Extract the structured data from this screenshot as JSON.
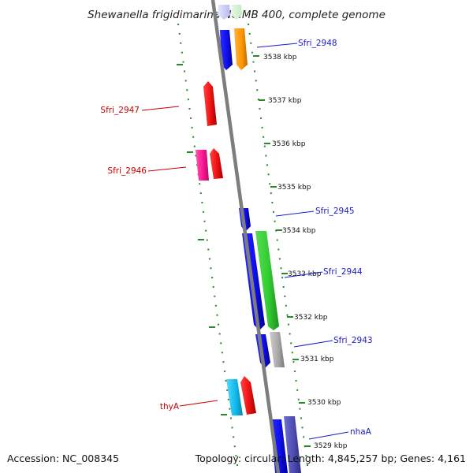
{
  "title": "Shewanella frigidimarina NCIMB 400, complete genome",
  "accession_text": "Accession: NC_008345",
  "topology_text": "Topology: circular; Length: 4,845,257 bp; Genes: 4,161",
  "position_ticks": [
    "3538 kbp",
    "3537 kbp",
    "3536 kbp",
    "3535 kbp",
    "3534 kbp",
    "3533 kbp",
    "3532 kbp",
    "3531 kbp",
    "3530 kbp",
    "3529 kbp"
  ],
  "forward_gene_labels": [
    "Sfri_2948",
    "Sfri_2945",
    "Sfri_2944",
    "Sfri_2943",
    "nhaA"
  ],
  "reverse_gene_labels": [
    "Sfri_2947",
    "Sfri_2946",
    "thyA"
  ],
  "colors": {
    "backbone": "#808080",
    "forward_label": "#1a1acc",
    "reverse_label": "#cc0000",
    "ruler_dots": "#2a8a2a",
    "blue_gene": "#1010ee",
    "orange_gene": "#ff9900",
    "green_gene": "#33cc33",
    "gray_gene": "#aaaaaa",
    "red_gene": "#ee1111",
    "pink_gene": "#ff1493",
    "cyan_gene": "#11bbee",
    "slate_gene": "#4d4db3"
  }
}
